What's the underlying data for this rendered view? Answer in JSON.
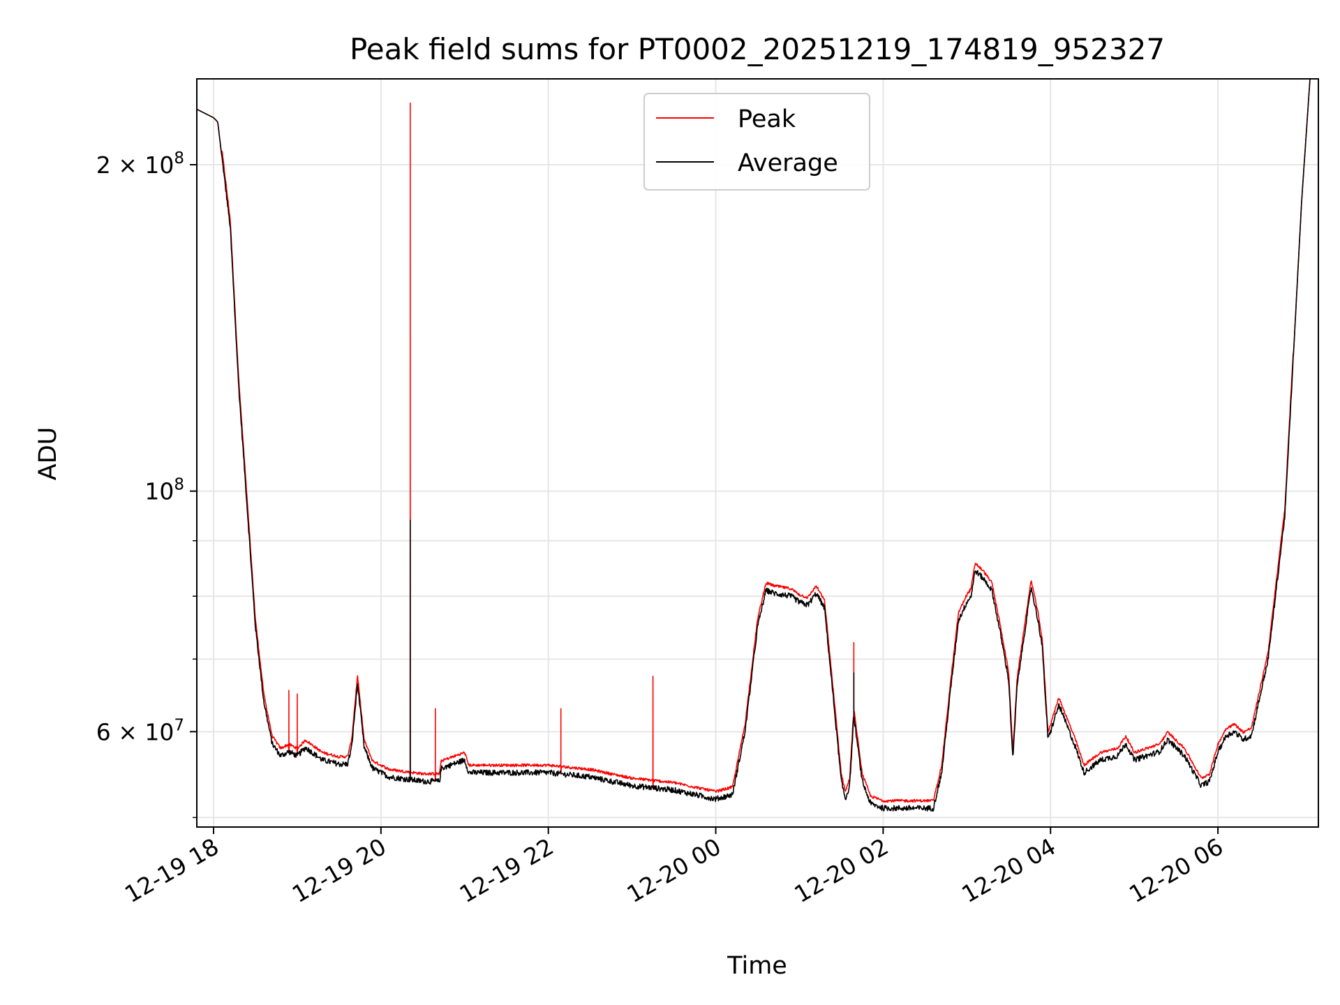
{
  "chart_data": {
    "type": "line",
    "title": "Peak field sums for PT0002_20251219_174819_952327",
    "xlabel": "Time",
    "ylabel": "ADU",
    "yscale": "log",
    "ylim": [
      49000000,
      240000000
    ],
    "xlim_hours": [
      -0.2,
      13.2
    ],
    "grid": true,
    "legend": {
      "location": "top-center",
      "entries": [
        "Peak",
        "Average"
      ]
    },
    "x_ticks": [
      {
        "h": 0,
        "label": "12-19 18"
      },
      {
        "h": 2,
        "label": "12-19 20"
      },
      {
        "h": 4,
        "label": "12-19 22"
      },
      {
        "h": 6,
        "label": "12-20 00"
      },
      {
        "h": 8,
        "label": "12-20 02"
      },
      {
        "h": 10,
        "label": "12-20 04"
      },
      {
        "h": 12,
        "label": "12-20 06"
      }
    ],
    "y_ticks": [
      {
        "value": 200000000,
        "base": "2 × 10",
        "exp": "8"
      },
      {
        "value": 100000000,
        "base": "10",
        "exp": "8"
      },
      {
        "value": 60000000,
        "base": "6 × 10",
        "exp": "7"
      }
    ],
    "y_minor": [
      50000000,
      70000000,
      80000000,
      90000000
    ],
    "series": [
      {
        "name": "Peak",
        "color": "#ff0000",
        "spikes": [
          [
            0.9,
            65500000
          ],
          [
            1.0,
            65000000
          ],
          [
            2.35,
            228000000
          ],
          [
            2.65,
            63000000
          ],
          [
            4.15,
            63000000
          ],
          [
            5.25,
            67500000
          ],
          [
            7.65,
            72500000
          ]
        ]
      },
      {
        "name": "Average",
        "color": "#000000",
        "spikes": [
          [
            2.35,
            94000000
          ],
          [
            7.65,
            68000000
          ]
        ]
      }
    ],
    "average_profile": [
      [
        -0.2,
        225000000
      ],
      [
        0.0,
        221000000
      ],
      [
        0.05,
        219000000
      ],
      [
        0.2,
        175000000
      ],
      [
        0.3,
        125000000
      ],
      [
        0.4,
        97000000
      ],
      [
        0.5,
        75000000
      ],
      [
        0.6,
        64000000
      ],
      [
        0.7,
        58500000
      ],
      [
        0.8,
        57000000
      ],
      [
        0.9,
        57500000
      ],
      [
        1.0,
        57000000
      ],
      [
        1.1,
        58000000
      ],
      [
        1.3,
        56500000
      ],
      [
        1.5,
        56000000
      ],
      [
        1.6,
        56000000
      ],
      [
        1.65,
        58000000
      ],
      [
        1.72,
        66500000
      ],
      [
        1.8,
        58000000
      ],
      [
        1.9,
        55500000
      ],
      [
        2.1,
        54500000
      ],
      [
        2.5,
        54000000
      ],
      [
        2.7,
        54000000
      ],
      [
        2.72,
        55500000
      ],
      [
        3.0,
        56500000
      ],
      [
        3.05,
        55000000
      ],
      [
        4.0,
        55000000
      ],
      [
        4.5,
        54500000
      ],
      [
        5.0,
        53500000
      ],
      [
        5.5,
        53000000
      ],
      [
        6.0,
        52000000
      ],
      [
        6.2,
        52500000
      ],
      [
        6.35,
        60000000
      ],
      [
        6.5,
        75000000
      ],
      [
        6.6,
        81000000
      ],
      [
        6.7,
        80500000
      ],
      [
        6.9,
        80000000
      ],
      [
        7.0,
        79000000
      ],
      [
        7.1,
        78500000
      ],
      [
        7.2,
        80500000
      ],
      [
        7.3,
        78000000
      ],
      [
        7.4,
        65000000
      ],
      [
        7.5,
        54000000
      ],
      [
        7.55,
        52000000
      ],
      [
        7.6,
        53500000
      ],
      [
        7.65,
        62000000
      ],
      [
        7.75,
        54000000
      ],
      [
        7.85,
        51500000
      ],
      [
        8.0,
        51000000
      ],
      [
        8.6,
        51000000
      ],
      [
        8.7,
        55000000
      ],
      [
        8.8,
        65000000
      ],
      [
        8.9,
        76000000
      ],
      [
        9.0,
        79000000
      ],
      [
        9.05,
        80000000
      ],
      [
        9.1,
        84500000
      ],
      [
        9.2,
        83000000
      ],
      [
        9.3,
        81000000
      ],
      [
        9.4,
        74000000
      ],
      [
        9.5,
        67000000
      ],
      [
        9.55,
        56500000
      ],
      [
        9.6,
        66000000
      ],
      [
        9.7,
        75000000
      ],
      [
        9.77,
        81500000
      ],
      [
        9.85,
        76000000
      ],
      [
        9.9,
        72000000
      ],
      [
        9.97,
        59000000
      ],
      [
        10.1,
        63500000
      ],
      [
        10.3,
        58000000
      ],
      [
        10.4,
        55000000
      ],
      [
        10.6,
        56500000
      ],
      [
        10.8,
        57000000
      ],
      [
        10.9,
        58500000
      ],
      [
        11.0,
        56500000
      ],
      [
        11.3,
        57500000
      ],
      [
        11.4,
        59000000
      ],
      [
        11.6,
        57000000
      ],
      [
        11.8,
        53500000
      ],
      [
        11.9,
        54000000
      ],
      [
        12.0,
        57500000
      ],
      [
        12.1,
        59500000
      ],
      [
        12.2,
        60000000
      ],
      [
        12.3,
        59000000
      ],
      [
        12.4,
        59500000
      ],
      [
        12.6,
        70000000
      ],
      [
        12.8,
        95000000
      ],
      [
        13.0,
        185000000
      ],
      [
        13.1,
        240000000
      ],
      [
        13.2,
        240000000
      ]
    ]
  }
}
